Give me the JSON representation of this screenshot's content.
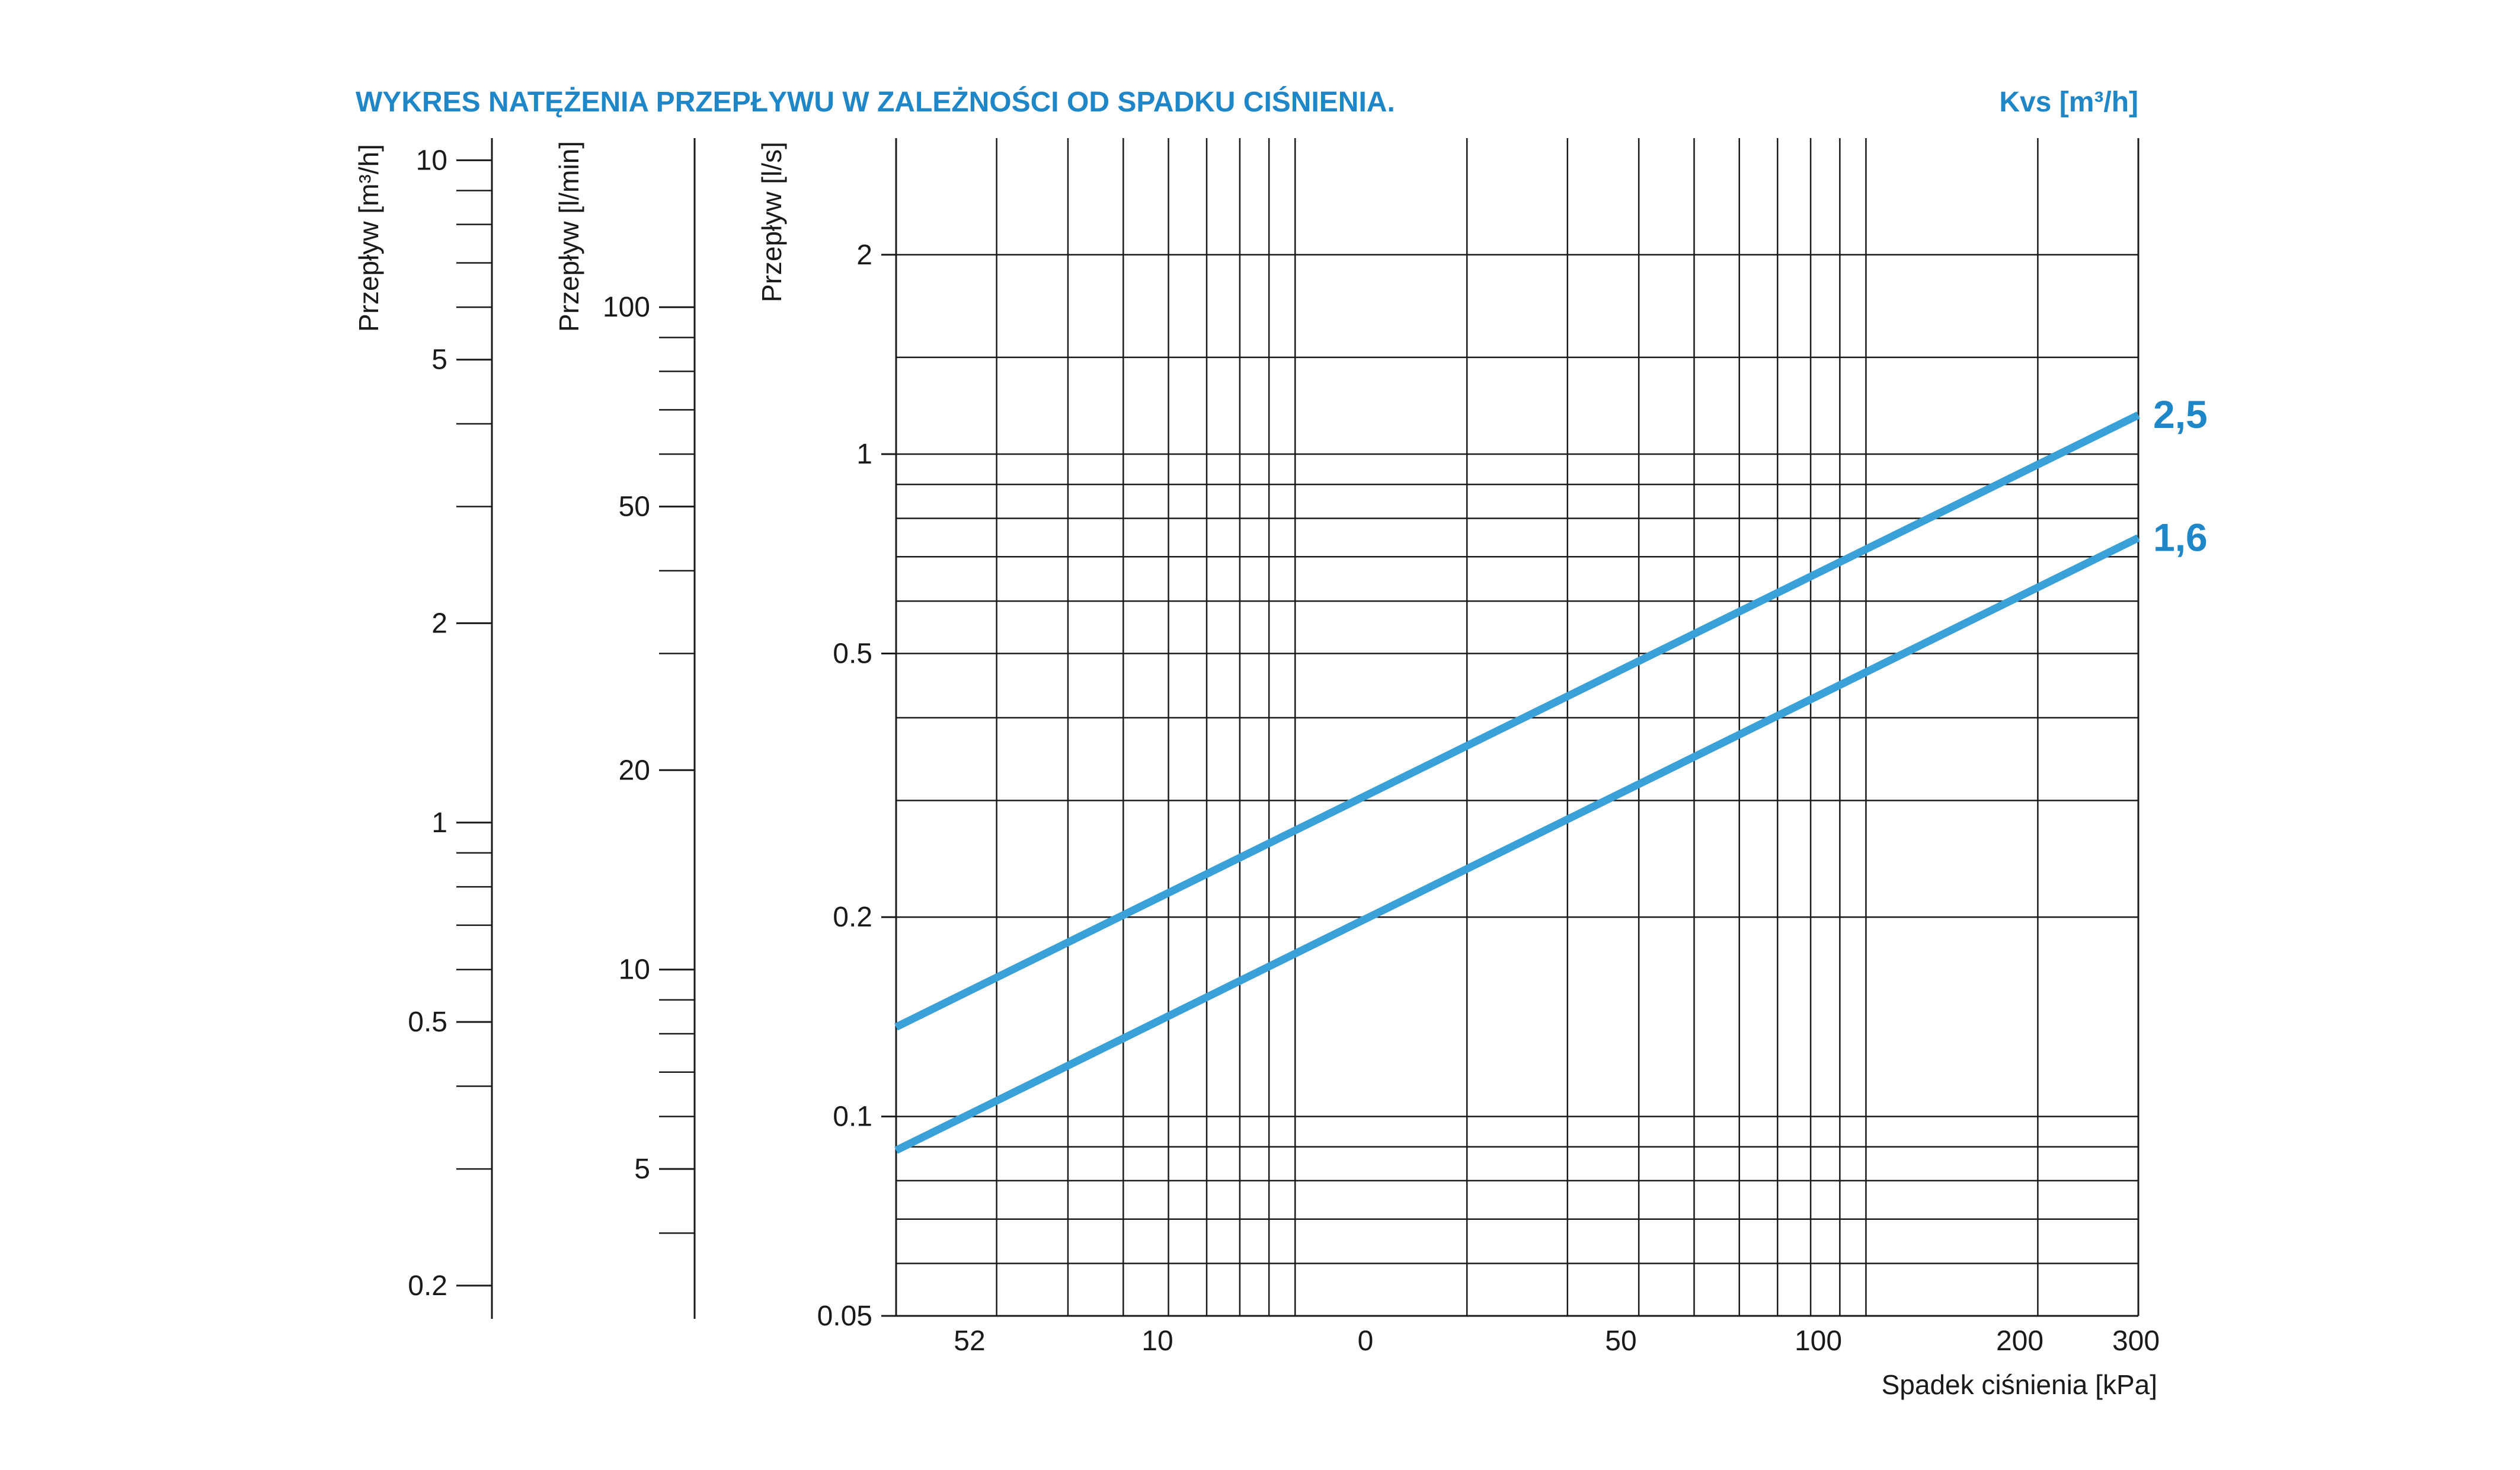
{
  "chart_data": {
    "type": "line",
    "title": "WYKRES NATĘŻENIA PRZEPŁYWU W ZALEŻNOŚCI OD SPADKU CIŚNIENIA.",
    "legend_title": "Kvs [m³/h]",
    "xlabel": "Spadek ciśnienia [kPa]",
    "x_scale": "log",
    "y_scale": "log",
    "grid": true,
    "x_tick_labels": [
      "52",
      "10",
      "0",
      "50",
      "100",
      "200",
      "300"
    ],
    "x_gridlines": [
      3,
      4,
      5,
      6,
      7,
      8,
      9,
      10,
      20,
      30,
      40,
      50,
      60,
      70,
      80,
      90,
      100,
      200,
      300
    ],
    "xlim": [
      2,
      300
    ],
    "ylim": [
      0.05,
      3
    ],
    "y_axes": [
      {
        "label": "Przepływ [m³/h]",
        "ticks": [
          "10",
          "5",
          "2",
          "1",
          "0.5",
          "0.2"
        ],
        "tick_values": [
          10,
          5,
          2,
          1,
          0.5,
          0.2
        ],
        "minor_values": [
          9,
          8,
          7,
          6,
          4,
          3,
          0.9,
          0.8,
          0.7,
          0.6,
          0.4,
          0.3
        ],
        "scale_to_ls": 0.27778
      },
      {
        "label": "Przepływ [l/min]",
        "ticks": [
          "100",
          "50",
          "20",
          "10",
          "5"
        ],
        "tick_values": [
          100,
          50,
          20,
          10,
          5
        ],
        "minor_values": [
          90,
          80,
          70,
          60,
          40,
          30,
          9,
          8,
          7,
          6,
          4
        ],
        "scale_to_ls": 0.016667
      },
      {
        "label": "Przepływ [l/s]",
        "ticks": [
          "2",
          "1",
          "0.5",
          "0.2",
          "0.1",
          "0.05"
        ],
        "tick_values": [
          2,
          1,
          0.5,
          0.2,
          0.1,
          0.05
        ],
        "gridlines": [
          2,
          1.4,
          1,
          0.9,
          0.8,
          0.7,
          0.6,
          0.5,
          0.4,
          0.3,
          0.2,
          0.1,
          0.09,
          0.08,
          0.07,
          0.06
        ]
      }
    ],
    "series": [
      {
        "name": "2,5",
        "kvs": 2.5,
        "x": [
          2,
          300
        ],
        "y": [
          0.1365,
          1.1455
        ]
      },
      {
        "name": "1,6",
        "kvs": 1.6,
        "x": [
          2,
          300
        ],
        "y": [
          0.0889,
          0.7475
        ]
      }
    ],
    "colors": {
      "line": "#3aa0d8",
      "accent": "#1f86c8",
      "grid": "#1a1a1a"
    }
  }
}
